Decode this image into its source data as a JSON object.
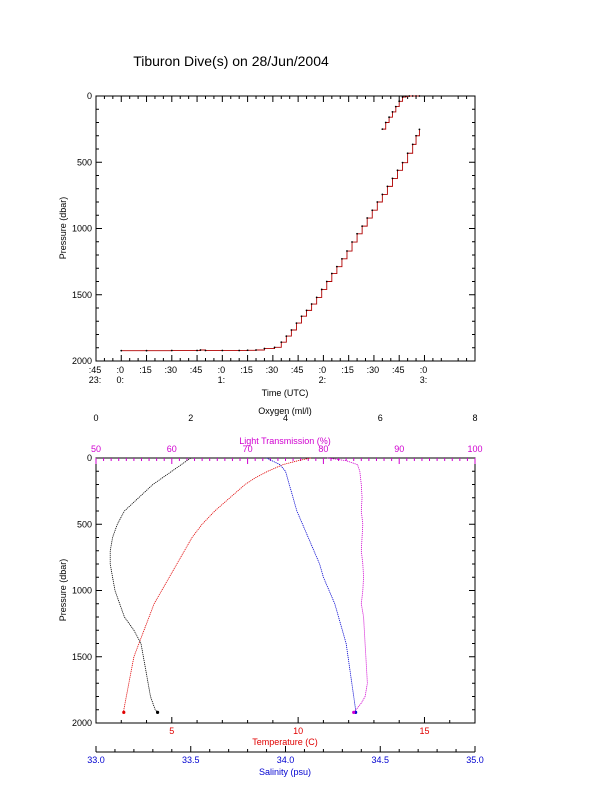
{
  "title": "Tiburon Dive(s) on 28/Jun/2004",
  "colors": {
    "axis": "#000000",
    "temperature": "#e00000",
    "salinity": "#0000d0",
    "oxygen": "#000000",
    "light": "#d000d0",
    "time_series": "#b00000",
    "time_points": "#000000"
  },
  "chart_data": [
    {
      "type": "line",
      "title": "Tiburon Dive(s) on 28/Jun/2004",
      "xlabel": "Time (UTC)",
      "ylabel": "Pressure (dbar)",
      "x_unit": "minutes after 23:45 UTC",
      "xlim": [
        0,
        225
      ],
      "ylim": [
        2000,
        0
      ],
      "y_reversed": true,
      "x_ticks": [
        {
          "value": 0,
          "top": ":45",
          "bottom": "23:"
        },
        {
          "value": 15,
          "top": ":0",
          "bottom": "0:"
        },
        {
          "value": 30,
          "top": ":15",
          "bottom": ""
        },
        {
          "value": 45,
          "top": ":30",
          "bottom": ""
        },
        {
          "value": 60,
          "top": ":45",
          "bottom": ""
        },
        {
          "value": 75,
          "top": ":0",
          "bottom": "1:"
        },
        {
          "value": 90,
          "top": ":15",
          "bottom": ""
        },
        {
          "value": 105,
          "top": ":30",
          "bottom": ""
        },
        {
          "value": 120,
          "top": ":45",
          "bottom": ""
        },
        {
          "value": 135,
          "top": ":0",
          "bottom": "2:"
        },
        {
          "value": 150,
          "top": ":15",
          "bottom": ""
        },
        {
          "value": 165,
          "top": ":30",
          "bottom": ""
        },
        {
          "value": 180,
          "top": ":45",
          "bottom": ""
        },
        {
          "value": 195,
          "top": ":0",
          "bottom": "3:"
        }
      ],
      "y_ticks": [
        0,
        500,
        1000,
        1500,
        2000
      ],
      "series": [
        {
          "x": [
            15,
            30,
            45,
            60,
            62,
            65,
            75,
            85,
            90,
            95,
            100,
            106,
            110,
            113,
            116,
            119,
            122,
            125,
            128,
            131,
            134,
            137,
            140,
            143,
            146,
            149,
            152,
            155,
            158,
            161,
            164,
            167,
            170,
            173,
            176,
            179,
            182,
            185,
            188,
            190,
            192
          ],
          "y": [
            1922,
            1922,
            1921,
            1921,
            1917,
            1921,
            1921,
            1921,
            1919,
            1917,
            1906,
            1897,
            1858,
            1812,
            1766,
            1714,
            1662,
            1618,
            1570,
            1520,
            1460,
            1400,
            1340,
            1288,
            1229,
            1170,
            1102,
            1040,
            982,
            921,
            862,
            800,
            743,
            682,
            622,
            561,
            503,
            432,
            365,
            300,
            252
          ]
        },
        {
          "x": [
            170,
            172,
            174,
            176,
            178,
            180,
            182,
            184,
            186,
            188,
            190,
            192
          ],
          "y": [
            250,
            200,
            160,
            120,
            80,
            40,
            8,
            2,
            0,
            0,
            0,
            0
          ]
        }
      ]
    },
    {
      "type": "scatter",
      "ylabel": "Pressure (dbar)",
      "ylim": [
        2000,
        0
      ],
      "y_reversed": true,
      "y_ticks": [
        0,
        500,
        1000,
        1500,
        2000
      ],
      "axes": {
        "temperature": {
          "label": "Temperature (C)",
          "xlim": [
            2,
            17
          ],
          "ticks": [
            5,
            10,
            15
          ]
        },
        "salinity": {
          "label": "Salinity (psu)",
          "xlim": [
            33.0,
            35.0
          ],
          "ticks": [
            33.0,
            33.5,
            34.0,
            34.5,
            35.0
          ]
        },
        "oxygen": {
          "label": "Oxygen (ml/l)",
          "xlim": [
            0,
            8
          ],
          "ticks": [
            0,
            2,
            4,
            6,
            8
          ]
        },
        "light": {
          "label": "Light Transmission (%)",
          "xlim": [
            50,
            100
          ],
          "ticks": [
            50,
            60,
            70,
            80,
            90,
            100
          ]
        }
      },
      "series": [
        {
          "name": "Temperature",
          "axis": "temperature",
          "p": [
            0,
            20,
            50,
            100,
            150,
            200,
            300,
            400,
            500,
            600,
            700,
            800,
            900,
            1000,
            1100,
            1200,
            1300,
            1400,
            1500,
            1600,
            1700,
            1800,
            1900,
            1920
          ],
          "x": [
            10.5,
            10.0,
            9.4,
            8.8,
            8.3,
            7.9,
            7.3,
            6.7,
            6.2,
            5.8,
            5.5,
            5.2,
            4.9,
            4.6,
            4.3,
            4.1,
            3.9,
            3.7,
            3.5,
            3.4,
            3.3,
            3.2,
            3.1,
            3.1
          ]
        },
        {
          "name": "Salinity",
          "axis": "salinity",
          "p": [
            0,
            50,
            100,
            200,
            300,
            400,
            500,
            600,
            700,
            800,
            900,
            1000,
            1100,
            1200,
            1300,
            1400,
            1500,
            1600,
            1700,
            1800,
            1900,
            1920
          ],
          "x": [
            33.9,
            33.97,
            34.0,
            34.02,
            34.04,
            34.06,
            34.09,
            34.12,
            34.15,
            34.18,
            34.2,
            34.23,
            34.26,
            34.28,
            34.3,
            34.32,
            34.33,
            34.34,
            34.35,
            34.36,
            34.37,
            34.37
          ]
        },
        {
          "name": "Oxygen",
          "axis": "oxygen",
          "p": [
            0,
            50,
            100,
            150,
            200,
            300,
            400,
            500,
            600,
            700,
            800,
            900,
            1000,
            1100,
            1200,
            1300,
            1400,
            1500,
            1600,
            1700,
            1800,
            1900,
            1920
          ],
          "x": [
            2.0,
            1.8,
            1.6,
            1.4,
            1.2,
            0.9,
            0.6,
            0.45,
            0.35,
            0.3,
            0.3,
            0.35,
            0.4,
            0.5,
            0.6,
            0.8,
            0.95,
            1.0,
            1.05,
            1.1,
            1.15,
            1.25,
            1.3
          ]
        },
        {
          "name": "Light Transmission",
          "axis": "light",
          "p": [
            0,
            20,
            50,
            100,
            200,
            300,
            400,
            500,
            600,
            700,
            800,
            900,
            1000,
            1100,
            1200,
            1300,
            1400,
            1500,
            1600,
            1700,
            1800,
            1850,
            1900,
            1920
          ],
          "x": [
            80.5,
            83.0,
            84.5,
            84.8,
            85.0,
            85.1,
            85.0,
            85.2,
            85.1,
            85.0,
            85.2,
            85.3,
            85.2,
            85.0,
            85.3,
            85.4,
            85.5,
            85.6,
            85.7,
            85.8,
            85.5,
            85.0,
            84.3,
            84.0
          ]
        }
      ]
    }
  ]
}
